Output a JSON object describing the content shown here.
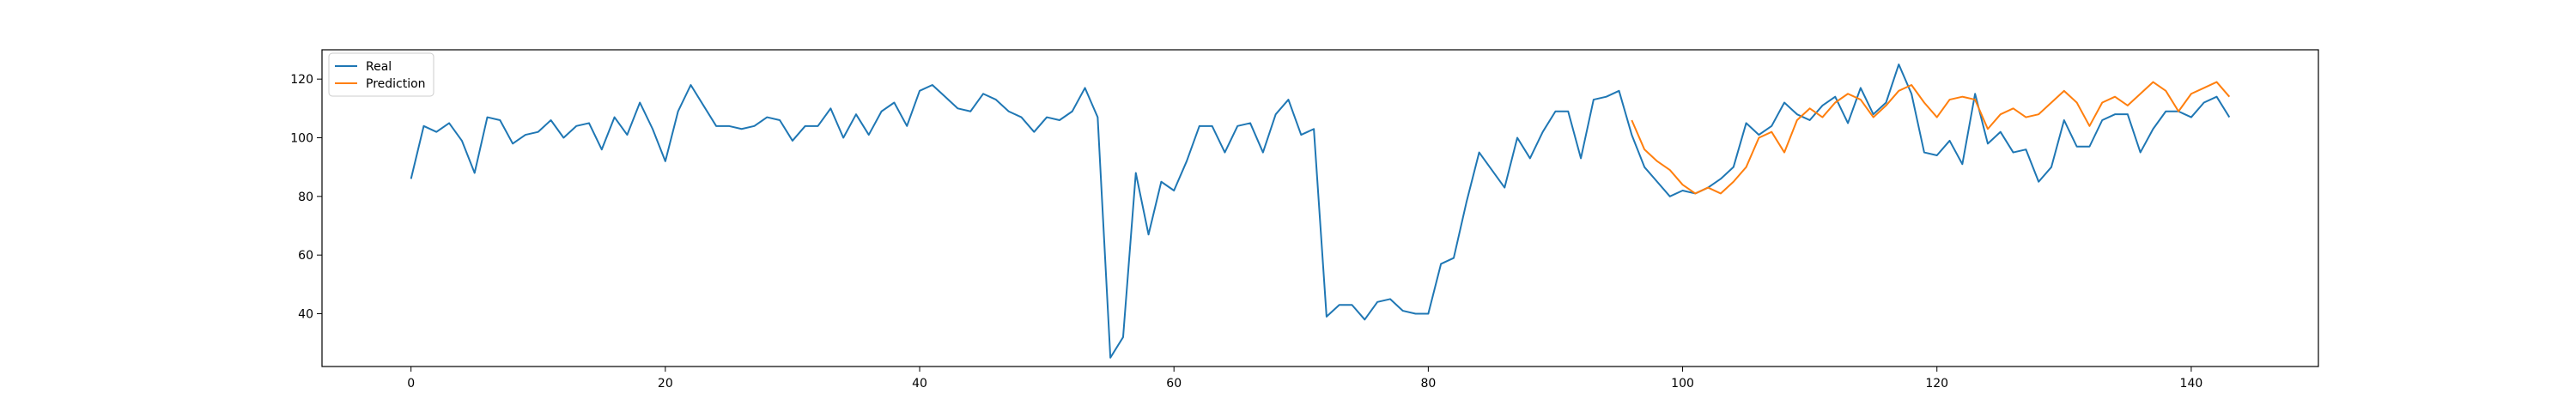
{
  "chart_data": {
    "type": "line",
    "title": "",
    "xlabel": "",
    "ylabel": "",
    "xlim": [
      -7,
      150
    ],
    "ylim": [
      22,
      130
    ],
    "xticks": [
      0,
      20,
      40,
      60,
      80,
      100,
      120,
      140
    ],
    "yticks": [
      40,
      60,
      80,
      100,
      120
    ],
    "grid": false,
    "legend": {
      "position": "top-left",
      "entries": [
        "Real",
        "Prediction"
      ]
    },
    "series": [
      {
        "name": "Real",
        "color": "#1f77b4",
        "x_start": 0,
        "values": [
          86,
          104,
          102,
          105,
          99,
          88,
          107,
          106,
          98,
          101,
          102,
          106,
          100,
          104,
          105,
          96,
          107,
          101,
          112,
          103,
          92,
          109,
          118,
          111,
          104,
          104,
          103,
          104,
          107,
          106,
          99,
          104,
          104,
          110,
          100,
          108,
          101,
          109,
          112,
          104,
          116,
          118,
          114,
          110,
          109,
          115,
          113,
          109,
          107,
          102,
          107,
          106,
          109,
          117,
          107,
          25,
          32,
          88,
          67,
          85,
          82,
          92,
          104,
          104,
          95,
          104,
          105,
          95,
          108,
          113,
          101,
          103,
          39,
          43,
          43,
          38,
          44,
          45,
          41,
          40,
          40,
          57,
          59,
          78,
          95,
          89,
          83,
          100,
          93,
          102,
          109,
          109,
          93,
          113,
          114,
          116,
          101,
          90,
          85,
          80,
          82,
          81,
          83,
          86,
          90,
          105,
          101,
          104,
          112,
          108,
          106,
          111,
          114,
          105,
          117,
          108,
          112,
          125,
          115,
          95,
          94,
          99,
          91,
          115,
          98,
          102,
          95,
          96,
          85,
          90,
          106,
          97,
          97,
          106,
          108,
          108,
          95,
          103,
          109,
          109,
          107,
          112,
          114,
          107
        ]
      },
      {
        "name": "Prediction",
        "color": "#ff7f0e",
        "x_start": 96,
        "values": [
          106,
          96,
          92,
          89,
          84,
          81,
          83,
          81,
          85,
          90,
          100,
          102,
          95,
          106,
          110,
          107,
          112,
          115,
          113,
          107,
          111,
          116,
          118,
          112,
          107,
          113,
          114,
          113,
          103,
          108,
          110,
          107,
          108,
          112,
          116,
          112,
          104,
          112,
          114,
          111,
          115,
          119,
          116,
          109,
          115,
          117,
          119,
          114
        ]
      }
    ]
  }
}
